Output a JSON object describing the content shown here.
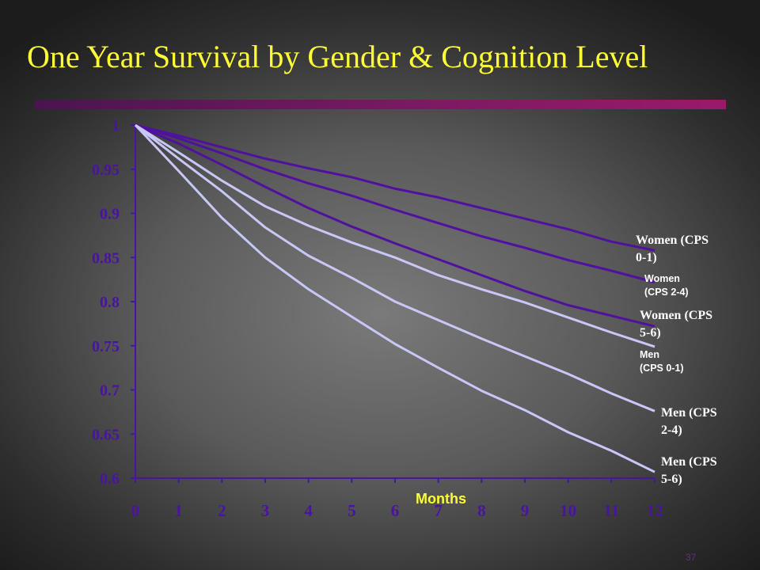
{
  "slide": {
    "title": "One Year Survival by Gender & Cognition Level",
    "page_number": "37"
  },
  "colors": {
    "title": "#ffff33",
    "rule": "#7a1a62",
    "women_lines": "#5010a0",
    "men_lines": "#c8c8f8",
    "ticks": "#4a14a0"
  },
  "chart_data": {
    "type": "line",
    "xlabel": "Months",
    "ylabel": "",
    "x": [
      0,
      1,
      2,
      3,
      4,
      5,
      6,
      7,
      8,
      9,
      10,
      11,
      12
    ],
    "xlim": [
      0,
      12
    ],
    "ylim": [
      0.6,
      1
    ],
    "yticks": [
      1,
      0.95,
      0.9,
      0.85,
      0.8,
      0.75,
      0.7,
      0.65,
      0.6
    ],
    "ytick_labels": [
      "1",
      "0.95",
      "0.9",
      "0.85",
      "0.8",
      "0.75",
      "0.7",
      "0.65",
      "0.6"
    ],
    "xtick_labels": [
      "0",
      "1",
      "2",
      "3",
      "4",
      "5",
      "6",
      "7",
      "8",
      "9",
      "10",
      "11",
      "12"
    ],
    "grid": false,
    "series": [
      {
        "name": "Women (CPS 0-1)",
        "label_lines": [
          "Women (CPS",
          "0-1)"
        ],
        "label_style": "serif",
        "group": "women",
        "values": [
          1,
          0.988,
          0.975,
          0.962,
          0.951,
          0.941,
          0.928,
          0.918,
          0.906,
          0.894,
          0.882,
          0.868,
          0.858
        ]
      },
      {
        "name": "Women (CPS 2-4)",
        "label_lines": [
          "Women",
          "(CPS 2-4)"
        ],
        "label_style": "sans",
        "group": "women",
        "values": [
          1,
          0.985,
          0.968,
          0.95,
          0.934,
          0.92,
          0.904,
          0.889,
          0.874,
          0.861,
          0.847,
          0.835,
          0.822
        ]
      },
      {
        "name": "Women (CPS 5-6)",
        "label_lines": [
          "Women (CPS",
          "5-6)"
        ],
        "label_style": "serif",
        "group": "women",
        "values": [
          1,
          0.979,
          0.955,
          0.93,
          0.906,
          0.885,
          0.866,
          0.848,
          0.83,
          0.812,
          0.796,
          0.784,
          0.772
        ]
      },
      {
        "name": "Men (CPS 0-1)",
        "label_lines": [
          "Men",
          "(CPS 0-1)"
        ],
        "label_style": "sans",
        "group": "men",
        "values": [
          1,
          0.969,
          0.937,
          0.908,
          0.886,
          0.867,
          0.85,
          0.83,
          0.814,
          0.799,
          0.782,
          0.765,
          0.749
        ]
      },
      {
        "name": "Men (CPS 2-4)",
        "label_lines": [
          "Men (CPS",
          "2-4)"
        ],
        "label_style": "serif",
        "group": "men",
        "values": [
          1,
          0.962,
          0.925,
          0.884,
          0.852,
          0.827,
          0.8,
          0.779,
          0.758,
          0.738,
          0.718,
          0.696,
          0.676
        ]
      },
      {
        "name": "Men (CPS 5-6)",
        "label_lines": [
          "Men (CPS",
          "5-6)"
        ],
        "label_style": "serif",
        "group": "men",
        "values": [
          1,
          0.948,
          0.895,
          0.85,
          0.814,
          0.783,
          0.752,
          0.725,
          0.699,
          0.677,
          0.652,
          0.631,
          0.607
        ]
      }
    ]
  }
}
